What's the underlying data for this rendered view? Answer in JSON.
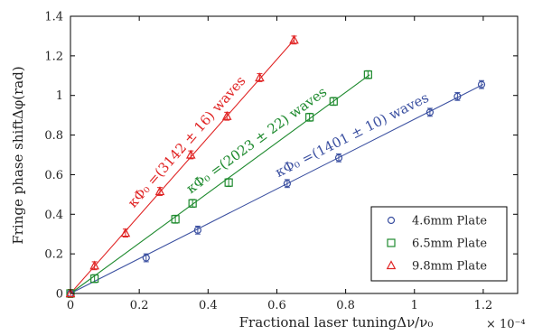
{
  "chart_data": {
    "type": "scatter",
    "xlabel": "Fractional laser tuningΔν/ν₀",
    "ylabel": "Fringe phase shiftΔφ(rad)",
    "x_multiplier": "× 10⁻⁴",
    "xlim": [
      0,
      1.3
    ],
    "ylim": [
      0,
      1.4
    ],
    "xticks": [
      "0",
      "0.2",
      "0.4",
      "0.6",
      "0.8",
      "1",
      "1.2"
    ],
    "yticks": [
      "0",
      "0.2",
      "0.4",
      "0.6",
      "0.8",
      "1",
      "1.2",
      "1.4"
    ],
    "legend_position": "bottom-right",
    "grid": false,
    "series": [
      {
        "name": "4.6mm Plate",
        "marker": "circle",
        "color": "#3a4fa0",
        "x": [
          0,
          0.22,
          0.37,
          0.63,
          0.78,
          1.045,
          1.125,
          1.195
        ],
        "y": [
          0,
          0.18,
          0.32,
          0.555,
          0.685,
          0.915,
          0.995,
          1.055
        ],
        "err": [
          0.02,
          0.02,
          0.02,
          0.02,
          0.02,
          0.02,
          0.02,
          0.02
        ],
        "fit_slope": 0.88,
        "fit_xmax": 1.2,
        "annotation": "κФ₀ =(1401 ± 10) waves"
      },
      {
        "name": "6.5mm Plate",
        "marker": "square",
        "color": "#1e8a2e",
        "x": [
          0,
          0.07,
          0.305,
          0.355,
          0.46,
          0.695,
          0.765,
          0.865
        ],
        "y": [
          0,
          0.075,
          0.375,
          0.455,
          0.56,
          0.89,
          0.97,
          1.105
        ],
        "err": [
          0.02,
          0.02,
          0.02,
          0.02,
          0.02,
          0.02,
          0.02,
          0.02
        ],
        "fit_slope": 1.27,
        "fit_xmax": 0.87,
        "annotation": "κФ₀ =(2023 ± 22) waves"
      },
      {
        "name": "9.8mm Plate",
        "marker": "triangle",
        "color": "#e02424",
        "x": [
          0,
          0.07,
          0.16,
          0.26,
          0.35,
          0.455,
          0.55,
          0.65
        ],
        "y": [
          0,
          0.14,
          0.305,
          0.515,
          0.7,
          0.895,
          1.09,
          1.28
        ],
        "err": [
          0.02,
          0.02,
          0.02,
          0.02,
          0.02,
          0.02,
          0.02,
          0.02
        ],
        "fit_slope": 1.97,
        "fit_xmax": 0.65,
        "annotation": "κФ₀ =(3142 ± 16) waves"
      }
    ]
  }
}
